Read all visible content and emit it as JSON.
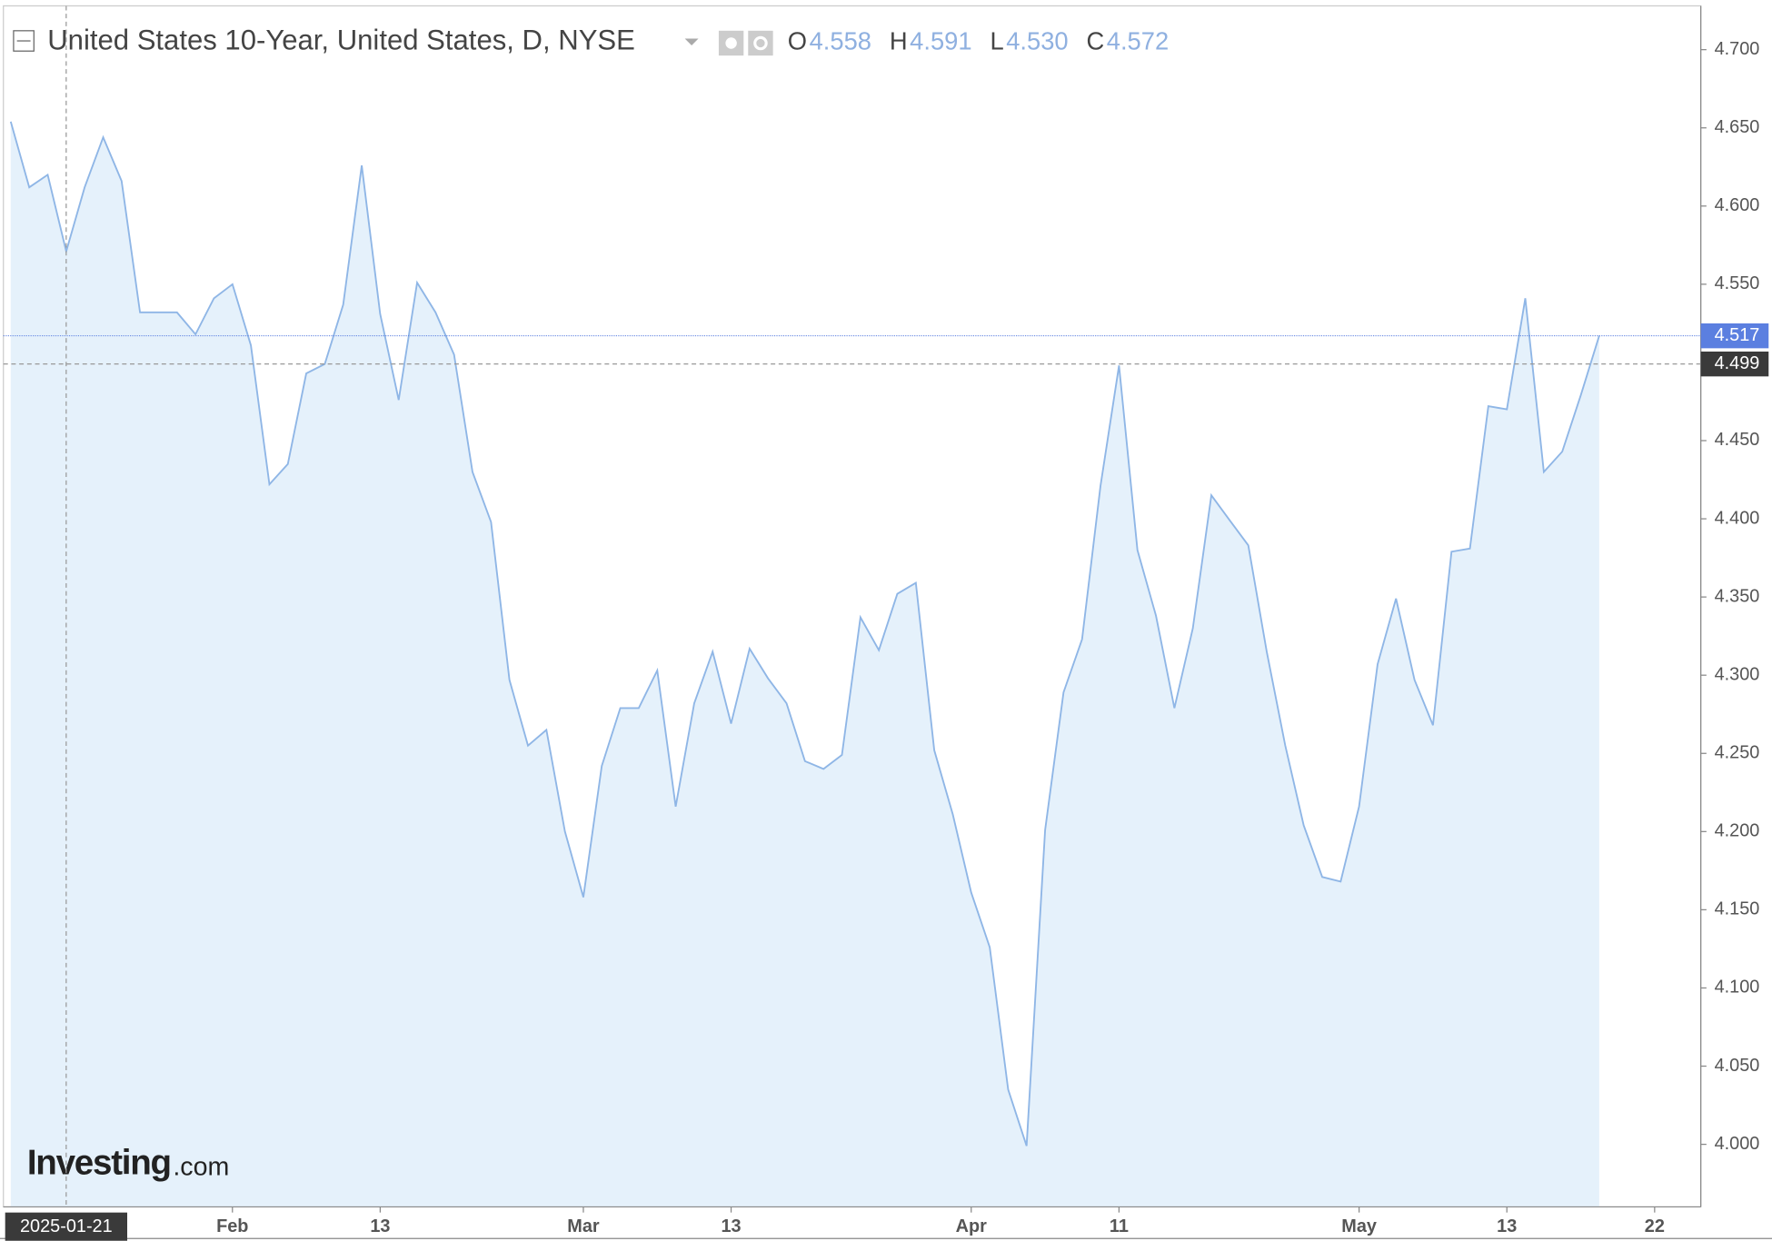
{
  "chart_data": {
    "type": "area",
    "title": "United States 10-Year, United States, D, NYSE",
    "ohlc": [
      {
        "label": "O",
        "value": "4.558"
      },
      {
        "label": "H",
        "value": "4.591"
      },
      {
        "label": "L",
        "value": "4.530"
      },
      {
        "label": "C",
        "value": "4.572"
      }
    ],
    "logo": {
      "main": "Investing",
      "suffix": ".com"
    },
    "series": [
      {
        "name": "United States 10-Year",
        "color": "#8fb6e6",
        "fill": "#e5f1fb",
        "values": [
          4.654,
          4.612,
          4.62,
          4.571,
          4.612,
          4.644,
          4.616,
          4.532,
          4.532,
          4.532,
          4.518,
          4.541,
          4.55,
          4.511,
          4.422,
          4.435,
          4.493,
          4.499,
          4.537,
          4.626,
          4.531,
          4.476,
          4.551,
          4.532,
          4.505,
          4.43,
          4.398,
          4.297,
          4.255,
          4.265,
          4.2,
          4.158,
          4.242,
          4.279,
          4.279,
          4.303,
          4.216,
          4.282,
          4.315,
          4.269,
          4.317,
          4.298,
          4.282,
          4.245,
          4.24,
          4.249,
          4.337,
          4.316,
          4.352,
          4.359,
          4.252,
          4.211,
          4.161,
          4.126,
          4.035,
          3.999,
          4.201,
          4.289,
          4.323,
          4.421,
          4.498,
          4.38,
          4.338,
          4.279,
          4.33,
          4.415,
          4.399,
          4.383,
          4.315,
          4.255,
          4.204,
          4.171,
          4.168,
          4.216,
          4.307,
          4.349,
          4.297,
          4.268,
          4.379,
          4.381,
          4.472,
          4.47,
          4.541,
          4.43,
          4.443,
          4.479,
          4.517
        ]
      }
    ],
    "last_value": {
      "value": 4.517,
      "label": "4.517",
      "color": "#5b7fe0"
    },
    "crosshair": {
      "value": 4.499,
      "label": "4.499",
      "x_label": "2025-01-21",
      "x_index": 3
    },
    "xlim": [
      -0.4,
      91.5
    ],
    "xticks": [
      {
        "value": 12,
        "label": "Feb"
      },
      {
        "value": 20,
        "label": "13"
      },
      {
        "value": 31,
        "label": "Mar"
      },
      {
        "value": 39,
        "label": "13"
      },
      {
        "value": 52,
        "label": "Apr"
      },
      {
        "value": 60,
        "label": "11"
      },
      {
        "value": 73,
        "label": "May"
      },
      {
        "value": 81,
        "label": "13"
      },
      {
        "value": 89,
        "label": "22"
      }
    ],
    "ylim": [
      3.96,
      4.728
    ],
    "yticks": [
      {
        "value": 4.0,
        "label": "4.000"
      },
      {
        "value": 4.05,
        "label": "4.050"
      },
      {
        "value": 4.1,
        "label": "4.100"
      },
      {
        "value": 4.15,
        "label": "4.150"
      },
      {
        "value": 4.2,
        "label": "4.200"
      },
      {
        "value": 4.25,
        "label": "4.250"
      },
      {
        "value": 4.3,
        "label": "4.300"
      },
      {
        "value": 4.35,
        "label": "4.350"
      },
      {
        "value": 4.4,
        "label": "4.400"
      },
      {
        "value": 4.45,
        "label": "4.450"
      },
      {
        "value": 4.5,
        "label": "4.500"
      },
      {
        "value": 4.55,
        "label": "4.550"
      },
      {
        "value": 4.6,
        "label": "4.600"
      },
      {
        "value": 4.65,
        "label": "4.650"
      },
      {
        "value": 4.7,
        "label": "4.700"
      }
    ]
  }
}
